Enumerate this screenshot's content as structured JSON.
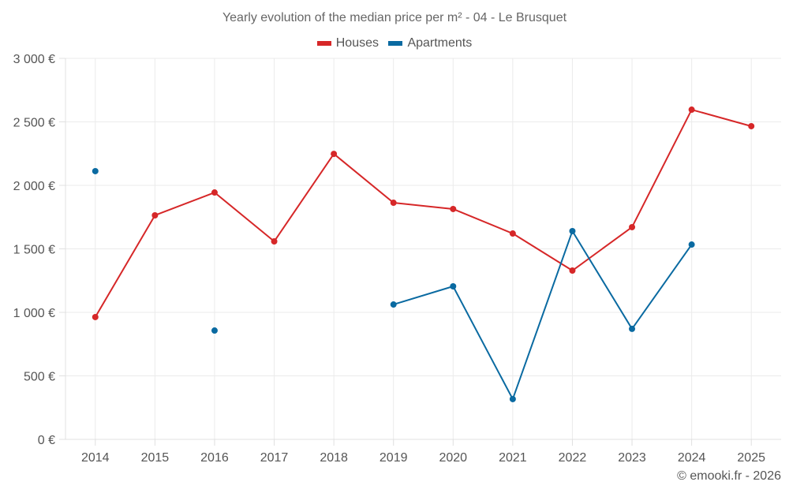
{
  "chart_data": {
    "type": "line",
    "title": "Yearly evolution of the median price per m² - 04 - Le Brusquet",
    "xlabel": "",
    "ylabel": "",
    "x": [
      "2014",
      "2015",
      "2016",
      "2017",
      "2018",
      "2019",
      "2020",
      "2021",
      "2022",
      "2023",
      "2024",
      "2025"
    ],
    "ylim": [
      0,
      3000
    ],
    "yticks": [
      0,
      500,
      1000,
      1500,
      2000,
      2500,
      3000
    ],
    "ytick_labels": [
      "0 €",
      "500 €",
      "1 000 €",
      "1 500 €",
      "2 000 €",
      "2 500 €",
      "3 000 €"
    ],
    "grid": true,
    "legend_position": "top-center",
    "series": [
      {
        "name": "Houses",
        "color": "#d62728",
        "values": [
          963,
          1764,
          1944,
          1559,
          2248,
          1863,
          1814,
          1621,
          1329,
          1671,
          2596,
          2466
        ]
      },
      {
        "name": "Apartments",
        "color": "#0a6aa1",
        "values": [
          2112,
          null,
          857,
          null,
          null,
          1062,
          1205,
          317,
          1640,
          870,
          1534,
          null
        ]
      }
    ]
  },
  "footer": "© emooki.fr - 2026"
}
